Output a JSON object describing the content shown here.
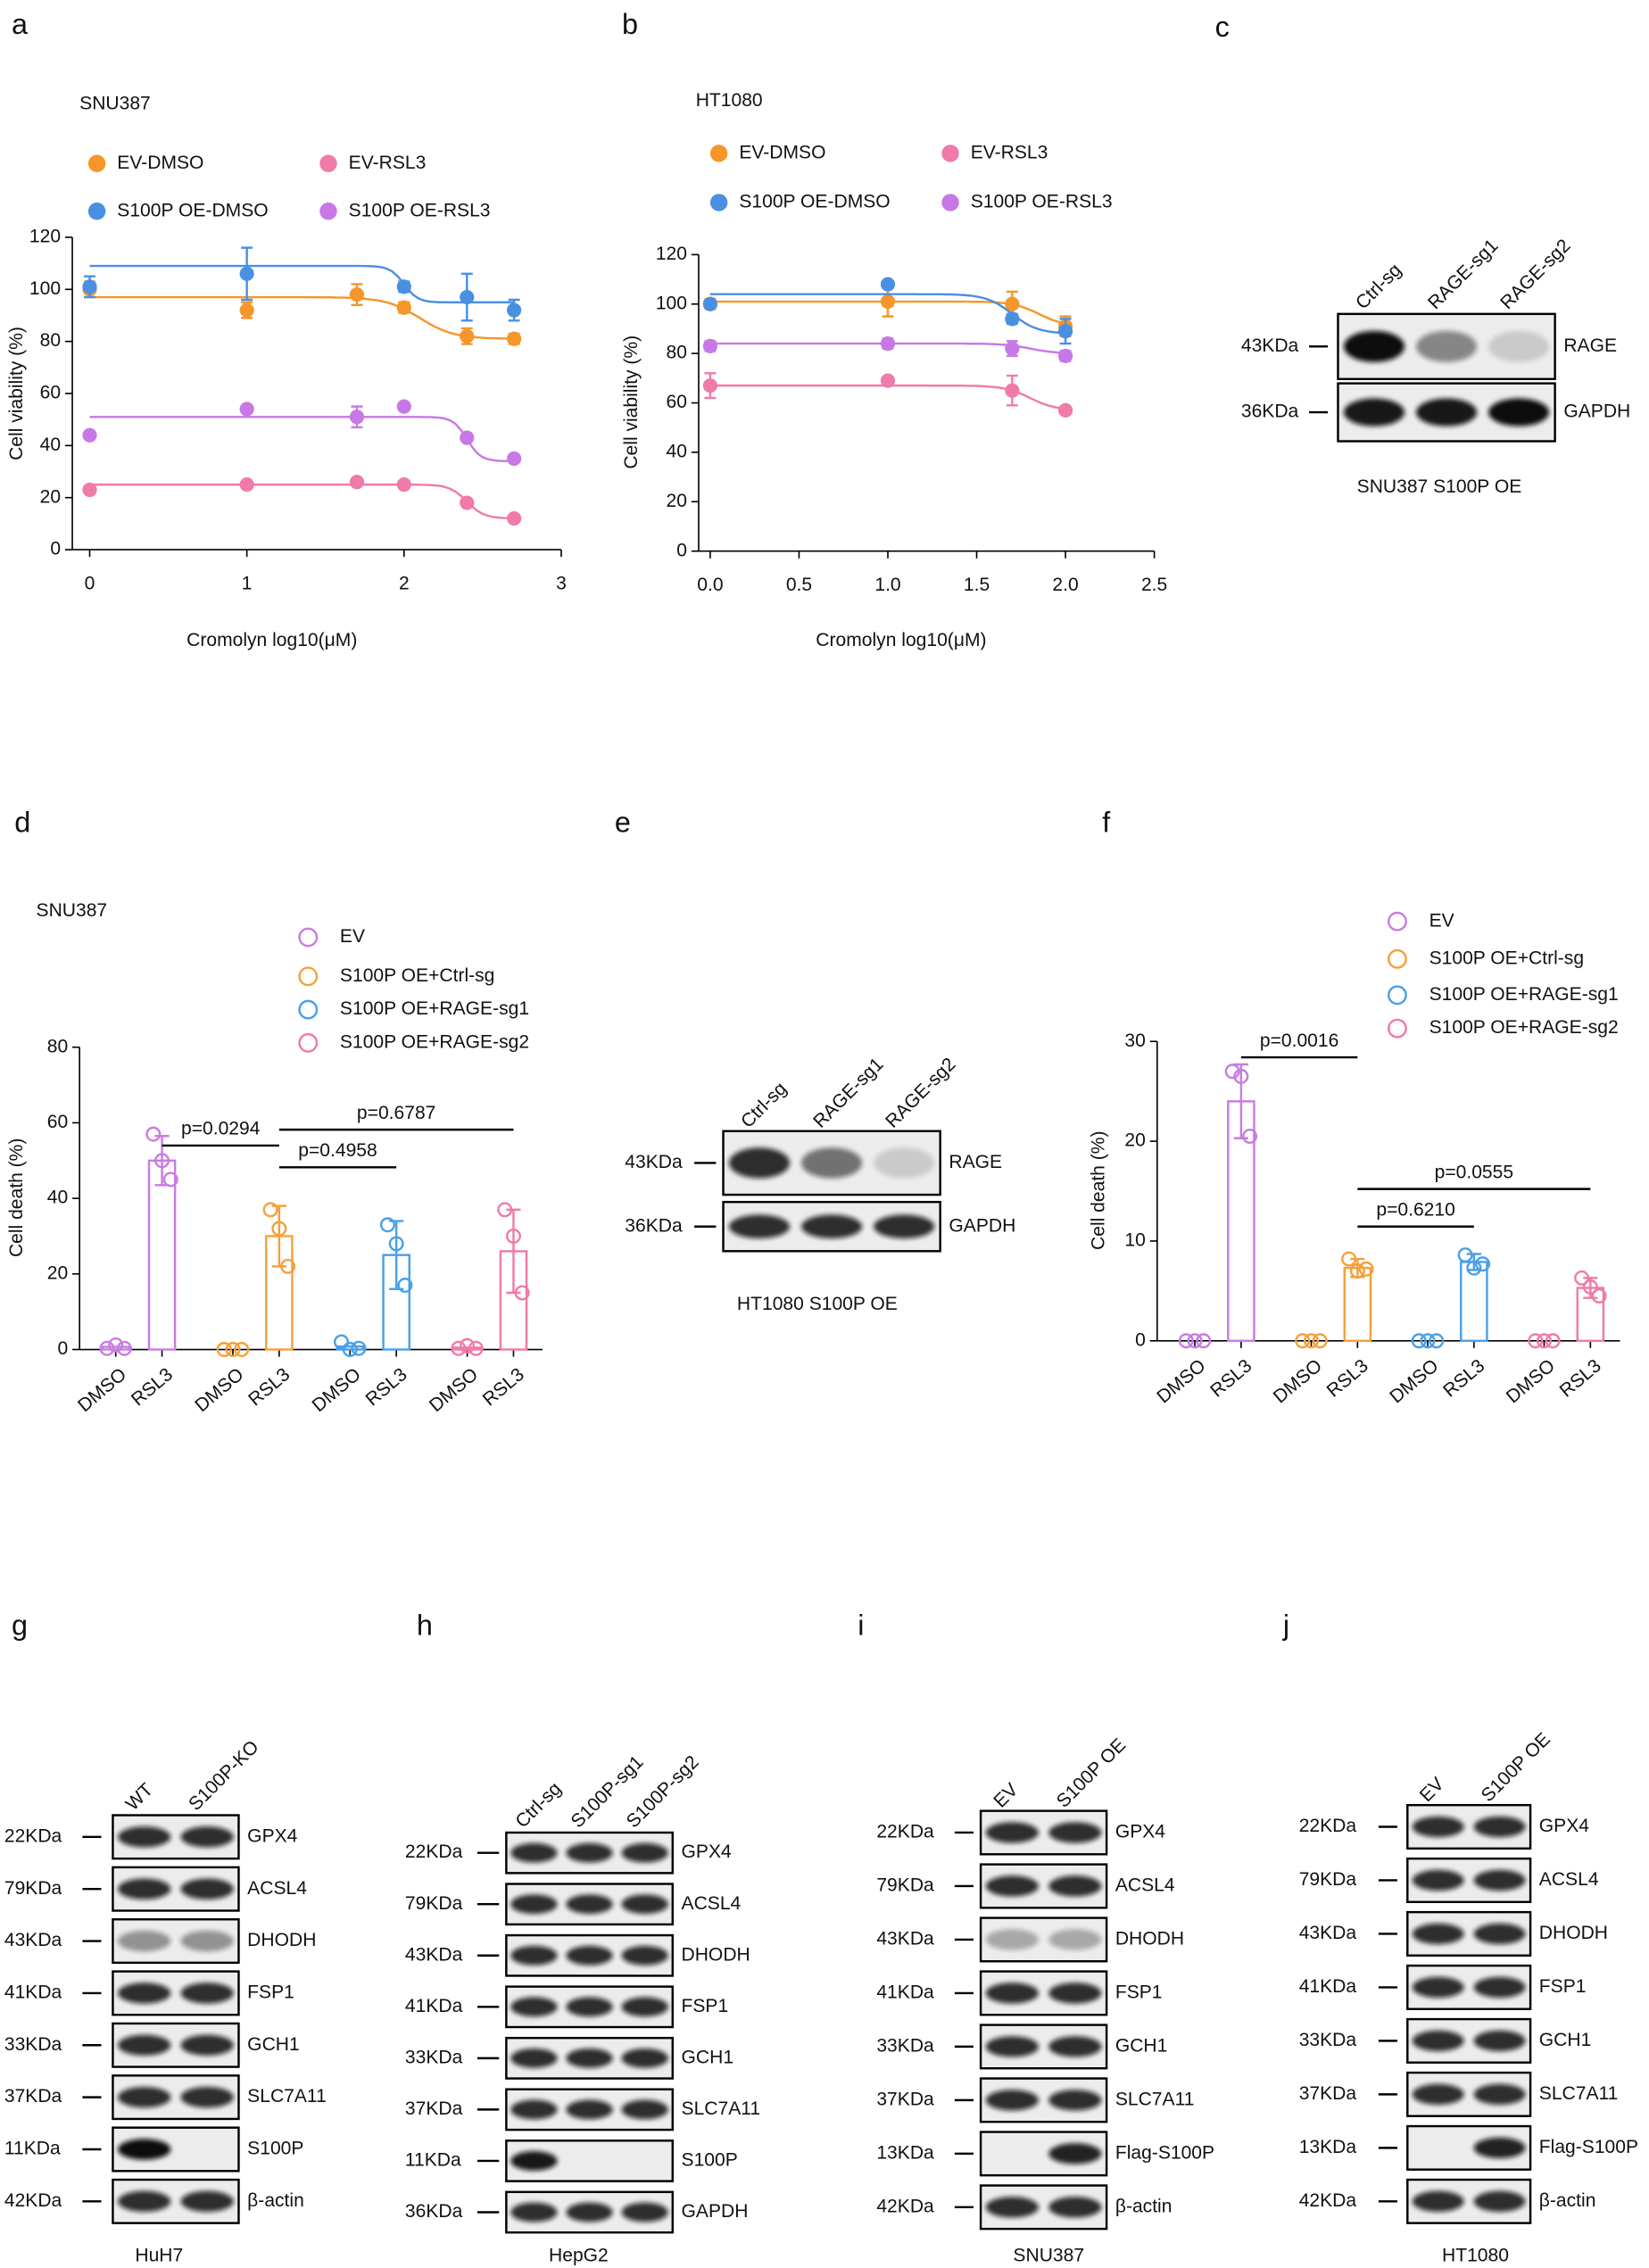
{
  "panels": [
    "a",
    "b",
    "c",
    "d",
    "e",
    "f",
    "g",
    "h",
    "i",
    "j"
  ],
  "chart_data": [
    {
      "type": "scatter",
      "title": "SNU387",
      "xlabel": "Cromolyn log10(μM)",
      "ylabel": "Cell viability (%)",
      "x": [
        0,
        1,
        1.7,
        2,
        2.4,
        2.7
      ],
      "xlim": [
        0,
        3
      ],
      "xticks": [
        0,
        1,
        2,
        3
      ],
      "ylim": [
        0,
        120
      ],
      "yticks": [
        0,
        20,
        40,
        60,
        80,
        100,
        120
      ],
      "series": [
        {
          "name": "EV-DMSO",
          "color": "#f5962a",
          "values": [
            100,
            92,
            98,
            93,
            82,
            81
          ],
          "errors": [
            3,
            3,
            4,
            2,
            3,
            2
          ],
          "fit": {
            "top": 97,
            "bottom": 81,
            "x50": 2.1,
            "slope": 4
          }
        },
        {
          "name": "EV-RSL3",
          "color": "#f07aaa",
          "values": [
            23,
            25,
            26,
            25,
            18,
            12
          ],
          "errors": [
            1,
            1,
            1,
            1,
            1,
            1
          ],
          "fit": {
            "top": 25,
            "bottom": 12,
            "x50": 2.4,
            "slope": 8
          }
        },
        {
          "name": "S100P OE-DMSO",
          "color": "#4a90e2",
          "values": [
            101,
            106,
            null,
            101,
            97,
            92
          ],
          "errors": [
            4,
            10,
            null,
            2,
            9,
            4
          ],
          "fit": {
            "top": 109,
            "bottom": 95,
            "x50": 2.0,
            "slope": 10
          }
        },
        {
          "name": "S100P OE-RSL3",
          "color": "#c878e6",
          "values": [
            44,
            54,
            51,
            55,
            43,
            35
          ],
          "errors": [
            1,
            1,
            4,
            1,
            1,
            1
          ],
          "fit": {
            "top": 51,
            "bottom": 34,
            "x50": 2.4,
            "slope": 10
          }
        }
      ]
    },
    {
      "type": "scatter",
      "title": "HT1080",
      "xlabel": "Cromolyn log10(μM)",
      "ylabel": "Cell viability (%)",
      "x": [
        0,
        1,
        1.7,
        2
      ],
      "xlim": [
        0,
        2.5
      ],
      "xticks": [
        {
          "value": 0,
          "label": "0.0"
        },
        0.5,
        {
          "value": 1,
          "label": "1.0"
        },
        1.5,
        {
          "value": 2,
          "label": "2.0"
        },
        2.5
      ],
      "ylim": [
        0,
        120
      ],
      "yticks": [
        0,
        20,
        40,
        60,
        80,
        100,
        120
      ],
      "series": [
        {
          "name": "EV-DMSO",
          "color": "#f5962a",
          "values": [
            100,
            101,
            100,
            91
          ],
          "errors": [
            2,
            6,
            5,
            4
          ],
          "fit": {
            "top": 101,
            "bottom": 91,
            "x50": 1.85,
            "slope": 6
          }
        },
        {
          "name": "EV-RSL3",
          "color": "#f07aaa",
          "values": [
            67,
            69,
            65,
            57
          ],
          "errors": [
            5,
            1,
            6,
            1
          ],
          "fit": {
            "top": 67,
            "bottom": 57,
            "x50": 1.8,
            "slope": 6
          }
        },
        {
          "name": "S100P OE-DMSO",
          "color": "#4a90e2",
          "values": [
            100,
            108,
            94,
            89
          ],
          "errors": [
            1,
            1,
            2,
            5
          ],
          "fit": {
            "top": 104,
            "bottom": 88,
            "x50": 1.7,
            "slope": 6
          }
        },
        {
          "name": "S100P OE-RSL3",
          "color": "#c878e6",
          "values": [
            83,
            84,
            82,
            79
          ],
          "errors": [
            2,
            2,
            3,
            2
          ],
          "fit": {
            "top": 84,
            "bottom": 80,
            "x50": 1.8,
            "slope": 6
          }
        }
      ]
    },
    {
      "type": "bar",
      "title": "SNU387",
      "ylabel": "Cell death (%)",
      "categories": [
        "DMSO",
        "RSL3",
        "DMSO",
        "RSL3",
        "DMSO",
        "RSL3",
        "DMSO",
        "RSL3"
      ],
      "ylim": [
        0,
        80
      ],
      "yticks": [
        0,
        20,
        40,
        60,
        80
      ],
      "series": [
        {
          "name": "EV",
          "color": "#c97be3",
          "values": [
            0.7,
            50,
            null,
            null,
            null,
            null,
            null,
            null
          ],
          "errors": [
            null,
            6.5,
            null,
            null,
            null,
            null,
            null,
            null
          ],
          "points": [
            [
              0.3,
              1.2,
              0.3
            ],
            [
              57,
              50,
              45
            ],
            null,
            null,
            null,
            null,
            null,
            null
          ]
        },
        {
          "name": "S100P OE+Ctrl-sg",
          "color": "#f5a03a",
          "values": [
            null,
            null,
            0,
            30,
            null,
            null,
            null,
            null
          ],
          "errors": [
            null,
            null,
            null,
            8,
            null,
            null,
            null,
            null
          ],
          "points": [
            null,
            null,
            [
              0,
              0,
              0
            ],
            [
              37,
              32,
              22
            ],
            null,
            null,
            null,
            null
          ]
        },
        {
          "name": "S100P OE+RAGE-sg1",
          "color": "#4aa0e8",
          "values": [
            null,
            null,
            null,
            null,
            0.8,
            25,
            null,
            null
          ],
          "errors": [
            null,
            null,
            null,
            null,
            null,
            9,
            null,
            null
          ],
          "points": [
            null,
            null,
            null,
            null,
            [
              2,
              0,
              0.3
            ],
            [
              33,
              28,
              17
            ],
            null,
            null
          ]
        },
        {
          "name": "S100P OE+RAGE-sg2",
          "color": "#f07aa8",
          "values": [
            null,
            null,
            null,
            null,
            null,
            null,
            0.5,
            26
          ],
          "errors": [
            null,
            null,
            null,
            null,
            null,
            null,
            null,
            11
          ],
          "points": [
            null,
            null,
            null,
            null,
            null,
            null,
            [
              0.3,
              1,
              0.3
            ],
            [
              37,
              30,
              15
            ]
          ]
        }
      ],
      "brackets": [
        {
          "label": "p=0.0294",
          "from": 1,
          "to": 3
        },
        {
          "label": "p=0.6787",
          "from": 3,
          "to": 7
        },
        {
          "label": "p=0.4958",
          "from": 3,
          "to": 5
        }
      ]
    },
    {
      "type": "bar",
      "ylabel": "Cell death (%)",
      "categories": [
        "DMSO",
        "RSL3",
        "DMSO",
        "RSL3",
        "DMSO",
        "RSL3",
        "DMSO",
        "RSL3"
      ],
      "ylim": [
        0,
        30
      ],
      "yticks": [
        0,
        10,
        20,
        30
      ],
      "series": [
        {
          "name": "EV",
          "color": "#c97be3",
          "values": [
            0,
            24,
            null,
            null,
            null,
            null,
            null,
            null
          ],
          "errors": [
            null,
            3.7,
            null,
            null,
            null,
            null,
            null,
            null
          ],
          "points": [
            [
              0,
              0,
              0
            ],
            [
              27,
              26.5,
              20.5
            ],
            null,
            null,
            null,
            null,
            null,
            null
          ]
        },
        {
          "name": "S100P OE+Ctrl-sg",
          "color": "#f5a03a",
          "values": [
            null,
            null,
            0,
            7.3,
            null,
            null,
            null,
            null
          ],
          "errors": [
            null,
            null,
            null,
            0.9,
            null,
            null,
            null,
            null
          ],
          "points": [
            null,
            null,
            [
              0,
              0,
              0
            ],
            [
              8.2,
              7,
              7.2
            ],
            null,
            null,
            null,
            null
          ]
        },
        {
          "name": "S100P OE+RAGE-sg1",
          "color": "#4aa0e8",
          "values": [
            null,
            null,
            null,
            null,
            0,
            7.9,
            null,
            null
          ],
          "errors": [
            null,
            null,
            null,
            null,
            null,
            0.8,
            null,
            null
          ],
          "points": [
            null,
            null,
            null,
            null,
            [
              0,
              0,
              0
            ],
            [
              8.6,
              7.3,
              7.7
            ],
            null,
            null
          ]
        },
        {
          "name": "S100P OE+RAGE-sg2",
          "color": "#f07aa8",
          "values": [
            null,
            null,
            null,
            null,
            null,
            null,
            0,
            5.3
          ],
          "errors": [
            null,
            null,
            null,
            null,
            null,
            null,
            null,
            1
          ],
          "points": [
            null,
            null,
            null,
            null,
            null,
            null,
            [
              0,
              0,
              0
            ],
            [
              6.3,
              5.4,
              4.5
            ]
          ]
        }
      ],
      "brackets": [
        {
          "label": "p=0.0016",
          "from": 1,
          "to": 3
        },
        {
          "label": "p=0.6210",
          "from": 3,
          "to": 5
        },
        {
          "label": "p=0.0555",
          "from": 3,
          "to": 7
        }
      ]
    }
  ],
  "blots": [
    {
      "lanes": [
        "Ctrl-sg",
        "RAGE-sg1",
        "RAGE-sg2"
      ],
      "rows": [
        {
          "marker": "43KDa",
          "protein": "RAGE"
        },
        {
          "marker": "36KDa",
          "protein": "GAPDH"
        }
      ],
      "caption": "SNU387 S100P OE"
    },
    {
      "lanes": [
        "Ctrl-sg",
        "RAGE-sg1",
        "RAGE-sg2"
      ],
      "rows": [
        {
          "marker": "43KDa",
          "protein": "RAGE"
        },
        {
          "marker": "36KDa",
          "protein": "GAPDH"
        }
      ],
      "caption": "HT1080 S100P OE"
    },
    {
      "lanes": [
        "WT",
        "S100P-KO"
      ],
      "rows": [
        {
          "marker": "22KDa",
          "protein": "GPX4"
        },
        {
          "marker": "79KDa",
          "protein": "ACSL4"
        },
        {
          "marker": "43KDa",
          "protein": "DHODH"
        },
        {
          "marker": "41KDa",
          "protein": "FSP1"
        },
        {
          "marker": "33KDa",
          "protein": "GCH1"
        },
        {
          "marker": "37KDa",
          "protein": "SLC7A11"
        },
        {
          "marker": "11KDa",
          "protein": "S100P"
        },
        {
          "marker": "42KDa",
          "protein": "β-actin"
        }
      ],
      "caption": "HuH7"
    },
    {
      "lanes": [
        "Ctrl-sg",
        "S100P-sg1",
        "S100P-sg2"
      ],
      "rows": [
        {
          "marker": "22KDa",
          "protein": "GPX4"
        },
        {
          "marker": "79KDa",
          "protein": "ACSL4"
        },
        {
          "marker": "43KDa",
          "protein": "DHODH"
        },
        {
          "marker": "41KDa",
          "protein": "FSP1"
        },
        {
          "marker": "33KDa",
          "protein": "GCH1"
        },
        {
          "marker": "37KDa",
          "protein": "SLC7A11"
        },
        {
          "marker": "11KDa",
          "protein": "S100P"
        },
        {
          "marker": "36KDa",
          "protein": "GAPDH"
        }
      ],
      "caption": "HepG2"
    },
    {
      "lanes": [
        "EV",
        "S100P OE"
      ],
      "rows": [
        {
          "marker": "22KDa",
          "protein": "GPX4"
        },
        {
          "marker": "79KDa",
          "protein": "ACSL4"
        },
        {
          "marker": "43KDa",
          "protein": "DHODH"
        },
        {
          "marker": "41KDa",
          "protein": "FSP1"
        },
        {
          "marker": "33KDa",
          "protein": "GCH1"
        },
        {
          "marker": "37KDa",
          "protein": "SLC7A11"
        },
        {
          "marker": "13KDa",
          "protein": "Flag-S100P"
        },
        {
          "marker": "42KDa",
          "protein": "β-actin"
        }
      ],
      "caption": "SNU387"
    },
    {
      "lanes": [
        "EV",
        "S100P OE"
      ],
      "rows": [
        {
          "marker": "22KDa",
          "protein": "GPX4"
        },
        {
          "marker": "79KDa",
          "protein": "ACSL4"
        },
        {
          "marker": "43KDa",
          "protein": "DHODH"
        },
        {
          "marker": "41KDa",
          "protein": "FSP1"
        },
        {
          "marker": "33KDa",
          "protein": "GCH1"
        },
        {
          "marker": "37KDa",
          "protein": "SLC7A11"
        },
        {
          "marker": "13KDa",
          "protein": "Flag-S100P"
        },
        {
          "marker": "42KDa",
          "protein": "β-actin"
        }
      ],
      "caption": "HT1080"
    }
  ]
}
